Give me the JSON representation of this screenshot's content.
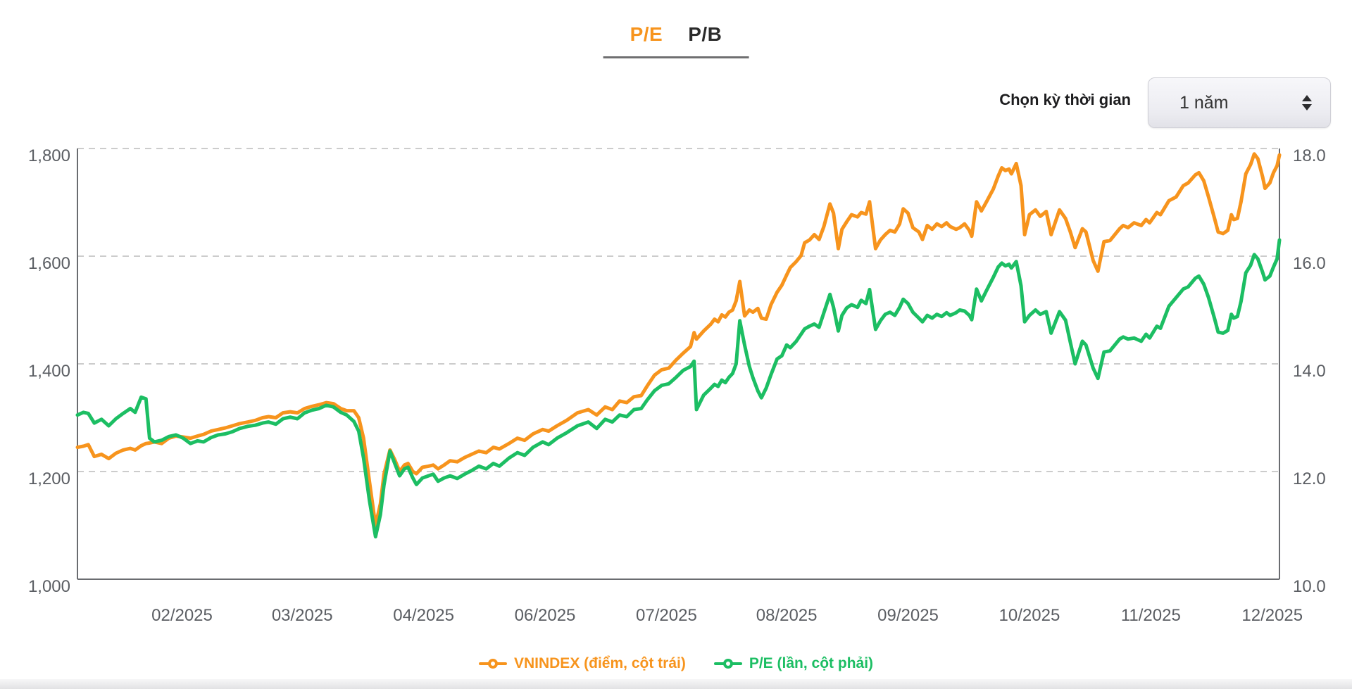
{
  "tabs": {
    "pe": "P/E",
    "pb": "P/B"
  },
  "controls": {
    "period_label": "Chọn kỳ thời gian",
    "period_value": "1 năm"
  },
  "legend": {
    "vnindex_label": "VNINDEX (điểm, cột trái)",
    "pe_label": "P/E (lần, cột phải)"
  },
  "colors": {
    "vnindex": "#F7941D",
    "pe": "#1CBE63",
    "grid": "#cccccc",
    "axis": "#6a6c70",
    "tick_text": "#5b5e63"
  },
  "chart_data": {
    "type": "line",
    "title": "",
    "legend_position": "bottom",
    "grid": "horizontal-dashed",
    "series_names": [
      "VNINDEX (điểm, cột trái)",
      "P/E (lần, cột phải)"
    ],
    "left_axis": {
      "min": 1000,
      "max": 1800,
      "ticks": [
        {
          "v": 1800,
          "label": "1,800"
        },
        {
          "v": 1600,
          "label": "1,600"
        },
        {
          "v": 1400,
          "label": "1,400"
        },
        {
          "v": 1200,
          "label": "1,200"
        },
        {
          "v": 1000,
          "label": "1,000"
        }
      ]
    },
    "right_axis": {
      "min": 10,
      "max": 18,
      "ticks": [
        {
          "v": 18,
          "label": "18.0"
        },
        {
          "v": 16,
          "label": "16.0"
        },
        {
          "v": 14,
          "label": "14.0"
        },
        {
          "v": 12,
          "label": "12.0"
        },
        {
          "v": 10,
          "label": "10.0"
        }
      ]
    },
    "x_ticks": [
      {
        "t": 0.087,
        "label": "02/2025"
      },
      {
        "t": 0.187,
        "label": "03/2025"
      },
      {
        "t": 0.288,
        "label": "04/2025"
      },
      {
        "t": 0.389,
        "label": "06/2025"
      },
      {
        "t": 0.49,
        "label": "07/2025"
      },
      {
        "t": 0.59,
        "label": "08/2025"
      },
      {
        "t": 0.691,
        "label": "09/2025"
      },
      {
        "t": 0.792,
        "label": "10/2025"
      },
      {
        "t": 0.893,
        "label": "11/2025"
      },
      {
        "t": 0.994,
        "label": "12/2025"
      }
    ],
    "points": [
      [
        0.0,
        1245,
        13.05
      ],
      [
        0.005,
        1247,
        13.1
      ],
      [
        0.009,
        1250,
        13.08
      ],
      [
        0.014,
        1228,
        12.9
      ],
      [
        0.02,
        1232,
        12.97
      ],
      [
        0.026,
        1224,
        12.85
      ],
      [
        0.032,
        1234,
        12.98
      ],
      [
        0.038,
        1240,
        13.08
      ],
      [
        0.044,
        1243,
        13.17
      ],
      [
        0.048,
        1240,
        13.1
      ],
      [
        0.053,
        1248,
        13.38
      ],
      [
        0.057,
        1252,
        13.35
      ],
      [
        0.06,
        1253,
        12.62
      ],
      [
        0.064,
        1255,
        12.55
      ],
      [
        0.07,
        1252,
        12.58
      ],
      [
        0.076,
        1262,
        12.65
      ],
      [
        0.082,
        1266,
        12.68
      ],
      [
        0.088,
        1264,
        12.62
      ],
      [
        0.094,
        1262,
        12.52
      ],
      [
        0.1,
        1266,
        12.57
      ],
      [
        0.105,
        1269,
        12.55
      ],
      [
        0.111,
        1275,
        12.63
      ],
      [
        0.117,
        1278,
        12.68
      ],
      [
        0.123,
        1281,
        12.7
      ],
      [
        0.129,
        1285,
        12.74
      ],
      [
        0.135,
        1289,
        12.8
      ],
      [
        0.142,
        1292,
        12.84
      ],
      [
        0.148,
        1295,
        12.86
      ],
      [
        0.154,
        1300,
        12.9
      ],
      [
        0.159,
        1302,
        12.92
      ],
      [
        0.165,
        1300,
        12.88
      ],
      [
        0.171,
        1309,
        12.98
      ],
      [
        0.177,
        1311,
        13.01
      ],
      [
        0.183,
        1309,
        12.98
      ],
      [
        0.189,
        1317,
        13.09
      ],
      [
        0.195,
        1321,
        13.14
      ],
      [
        0.201,
        1324,
        13.17
      ],
      [
        0.207,
        1328,
        13.23
      ],
      [
        0.213,
        1326,
        13.2
      ],
      [
        0.219,
        1317,
        13.1
      ],
      [
        0.224,
        1313,
        13.05
      ],
      [
        0.23,
        1313,
        12.93
      ],
      [
        0.234,
        1300,
        12.75
      ],
      [
        0.238,
        1262,
        12.25
      ],
      [
        0.243,
        1180,
        11.45
      ],
      [
        0.248,
        1100,
        10.79
      ],
      [
        0.252,
        1140,
        11.2
      ],
      [
        0.255,
        1195,
        11.75
      ],
      [
        0.26,
        1240,
        12.38
      ],
      [
        0.264,
        1222,
        12.15
      ],
      [
        0.268,
        1200,
        11.92
      ],
      [
        0.272,
        1212,
        12.05
      ],
      [
        0.275,
        1215,
        12.08
      ],
      [
        0.279,
        1200,
        11.88
      ],
      [
        0.282,
        1196,
        11.76
      ],
      [
        0.287,
        1208,
        11.88
      ],
      [
        0.292,
        1210,
        11.92
      ],
      [
        0.296,
        1212,
        11.95
      ],
      [
        0.3,
        1205,
        11.82
      ],
      [
        0.305,
        1212,
        11.88
      ],
      [
        0.31,
        1220,
        11.92
      ],
      [
        0.316,
        1218,
        11.87
      ],
      [
        0.322,
        1226,
        11.95
      ],
      [
        0.328,
        1232,
        12.02
      ],
      [
        0.334,
        1238,
        12.1
      ],
      [
        0.34,
        1235,
        12.05
      ],
      [
        0.346,
        1245,
        12.15
      ],
      [
        0.351,
        1242,
        12.1
      ],
      [
        0.359,
        1252,
        12.25
      ],
      [
        0.366,
        1262,
        12.35
      ],
      [
        0.372,
        1258,
        12.3
      ],
      [
        0.379,
        1270,
        12.45
      ],
      [
        0.387,
        1278,
        12.55
      ],
      [
        0.392,
        1275,
        12.5
      ],
      [
        0.399,
        1285,
        12.62
      ],
      [
        0.407,
        1295,
        12.72
      ],
      [
        0.416,
        1309,
        12.85
      ],
      [
        0.425,
        1315,
        12.92
      ],
      [
        0.432,
        1305,
        12.8
      ],
      [
        0.439,
        1320,
        12.97
      ],
      [
        0.445,
        1315,
        12.92
      ],
      [
        0.451,
        1331,
        13.05
      ],
      [
        0.457,
        1328,
        13.02
      ],
      [
        0.463,
        1339,
        13.15
      ],
      [
        0.469,
        1341,
        13.17
      ],
      [
        0.474,
        1359,
        13.33
      ],
      [
        0.48,
        1379,
        13.5
      ],
      [
        0.486,
        1389,
        13.6
      ],
      [
        0.492,
        1392,
        13.63
      ],
      [
        0.498,
        1407,
        13.75
      ],
      [
        0.504,
        1420,
        13.88
      ],
      [
        0.51,
        1432,
        13.95
      ],
      [
        0.513,
        1458,
        14.05
      ],
      [
        0.515,
        1446,
        13.15
      ],
      [
        0.521,
        1461,
        13.42
      ],
      [
        0.527,
        1474,
        13.55
      ],
      [
        0.53,
        1483,
        13.62
      ],
      [
        0.533,
        1478,
        13.58
      ],
      [
        0.536,
        1491,
        13.7
      ],
      [
        0.539,
        1487,
        13.65
      ],
      [
        0.542,
        1496,
        13.75
      ],
      [
        0.545,
        1500,
        13.82
      ],
      [
        0.548,
        1517,
        14.0
      ],
      [
        0.551,
        1553,
        14.8
      ],
      [
        0.555,
        1489,
        14.35
      ],
      [
        0.559,
        1500,
        13.95
      ],
      [
        0.562,
        1496,
        13.74
      ],
      [
        0.566,
        1503,
        13.5
      ],
      [
        0.569,
        1485,
        13.37
      ],
      [
        0.573,
        1483,
        13.55
      ],
      [
        0.577,
        1510,
        13.8
      ],
      [
        0.582,
        1533,
        14.09
      ],
      [
        0.586,
        1546,
        14.15
      ],
      [
        0.59,
        1565,
        14.35
      ],
      [
        0.593,
        1579,
        14.3
      ],
      [
        0.598,
        1590,
        14.42
      ],
      [
        0.602,
        1601,
        14.55
      ],
      [
        0.605,
        1625,
        14.65
      ],
      [
        0.609,
        1630,
        14.7
      ],
      [
        0.613,
        1640,
        14.74
      ],
      [
        0.617,
        1631,
        14.68
      ],
      [
        0.621,
        1655,
        14.95
      ],
      [
        0.626,
        1697,
        15.29
      ],
      [
        0.629,
        1680,
        15.05
      ],
      [
        0.633,
        1614,
        14.61
      ],
      [
        0.636,
        1650,
        14.9
      ],
      [
        0.64,
        1664,
        15.04
      ],
      [
        0.644,
        1677,
        15.1
      ],
      [
        0.649,
        1673,
        15.05
      ],
      [
        0.652,
        1681,
        15.18
      ],
      [
        0.656,
        1678,
        15.12
      ],
      [
        0.659,
        1701,
        15.38
      ],
      [
        0.664,
        1614,
        14.64
      ],
      [
        0.668,
        1630,
        14.8
      ],
      [
        0.672,
        1640,
        14.92
      ],
      [
        0.676,
        1648,
        14.96
      ],
      [
        0.68,
        1645,
        14.9
      ],
      [
        0.684,
        1660,
        15.05
      ],
      [
        0.687,
        1688,
        15.2
      ],
      [
        0.691,
        1680,
        15.12
      ],
      [
        0.695,
        1653,
        14.96
      ],
      [
        0.7,
        1645,
        14.85
      ],
      [
        0.703,
        1631,
        14.78
      ],
      [
        0.707,
        1657,
        14.9
      ],
      [
        0.711,
        1650,
        14.85
      ],
      [
        0.715,
        1660,
        14.92
      ],
      [
        0.719,
        1655,
        14.88
      ],
      [
        0.723,
        1662,
        14.95
      ],
      [
        0.726,
        1655,
        14.9
      ],
      [
        0.731,
        1650,
        14.95
      ],
      [
        0.734,
        1653,
        15.0
      ],
      [
        0.738,
        1660,
        14.98
      ],
      [
        0.742,
        1648,
        14.9
      ],
      [
        0.744,
        1637,
        14.82
      ],
      [
        0.748,
        1701,
        15.39
      ],
      [
        0.752,
        1684,
        15.17
      ],
      [
        0.756,
        1700,
        15.35
      ],
      [
        0.762,
        1725,
        15.61
      ],
      [
        0.766,
        1749,
        15.8
      ],
      [
        0.769,
        1764,
        15.87
      ],
      [
        0.772,
        1759,
        15.82
      ],
      [
        0.775,
        1762,
        15.85
      ],
      [
        0.777,
        1753,
        15.78
      ],
      [
        0.781,
        1772,
        15.9
      ],
      [
        0.785,
        1731,
        15.45
      ],
      [
        0.788,
        1640,
        14.78
      ],
      [
        0.792,
        1677,
        14.9
      ],
      [
        0.797,
        1686,
        15.0
      ],
      [
        0.801,
        1674,
        14.92
      ],
      [
        0.806,
        1683,
        14.97
      ],
      [
        0.81,
        1640,
        14.57
      ],
      [
        0.817,
        1686,
        14.97
      ],
      [
        0.822,
        1670,
        14.81
      ],
      [
        0.826,
        1645,
        14.4
      ],
      [
        0.83,
        1616,
        14.0
      ],
      [
        0.836,
        1651,
        14.42
      ],
      [
        0.839,
        1645,
        14.35
      ],
      [
        0.845,
        1592,
        13.92
      ],
      [
        0.849,
        1572,
        13.73
      ],
      [
        0.854,
        1627,
        14.22
      ],
      [
        0.859,
        1629,
        14.24
      ],
      [
        0.867,
        1651,
        14.46
      ],
      [
        0.87,
        1657,
        14.5
      ],
      [
        0.874,
        1653,
        14.46
      ],
      [
        0.879,
        1662,
        14.48
      ],
      [
        0.885,
        1657,
        14.42
      ],
      [
        0.889,
        1668,
        14.55
      ],
      [
        0.892,
        1662,
        14.48
      ],
      [
        0.898,
        1681,
        14.7
      ],
      [
        0.901,
        1677,
        14.66
      ],
      [
        0.908,
        1703,
        15.07
      ],
      [
        0.914,
        1710,
        15.23
      ],
      [
        0.92,
        1731,
        15.39
      ],
      [
        0.924,
        1736,
        15.43
      ],
      [
        0.93,
        1751,
        15.59
      ],
      [
        0.933,
        1755,
        15.63
      ],
      [
        0.937,
        1740,
        15.48
      ],
      [
        0.941,
        1710,
        15.23
      ],
      [
        0.946,
        1670,
        14.84
      ],
      [
        0.949,
        1645,
        14.59
      ],
      [
        0.953,
        1642,
        14.57
      ],
      [
        0.957,
        1648,
        14.62
      ],
      [
        0.96,
        1677,
        14.92
      ],
      [
        0.962,
        1668,
        14.85
      ],
      [
        0.965,
        1670,
        14.88
      ],
      [
        0.968,
        1701,
        15.16
      ],
      [
        0.972,
        1753,
        15.69
      ],
      [
        0.976,
        1770,
        15.83
      ],
      [
        0.979,
        1790,
        16.03
      ],
      [
        0.982,
        1781,
        15.95
      ],
      [
        0.986,
        1747,
        15.7
      ],
      [
        0.988,
        1726,
        15.56
      ],
      [
        0.992,
        1736,
        15.63
      ],
      [
        0.995,
        1755,
        15.8
      ],
      [
        0.998,
        1768,
        15.95
      ],
      [
        1.0,
        1788,
        16.3
      ]
    ]
  }
}
